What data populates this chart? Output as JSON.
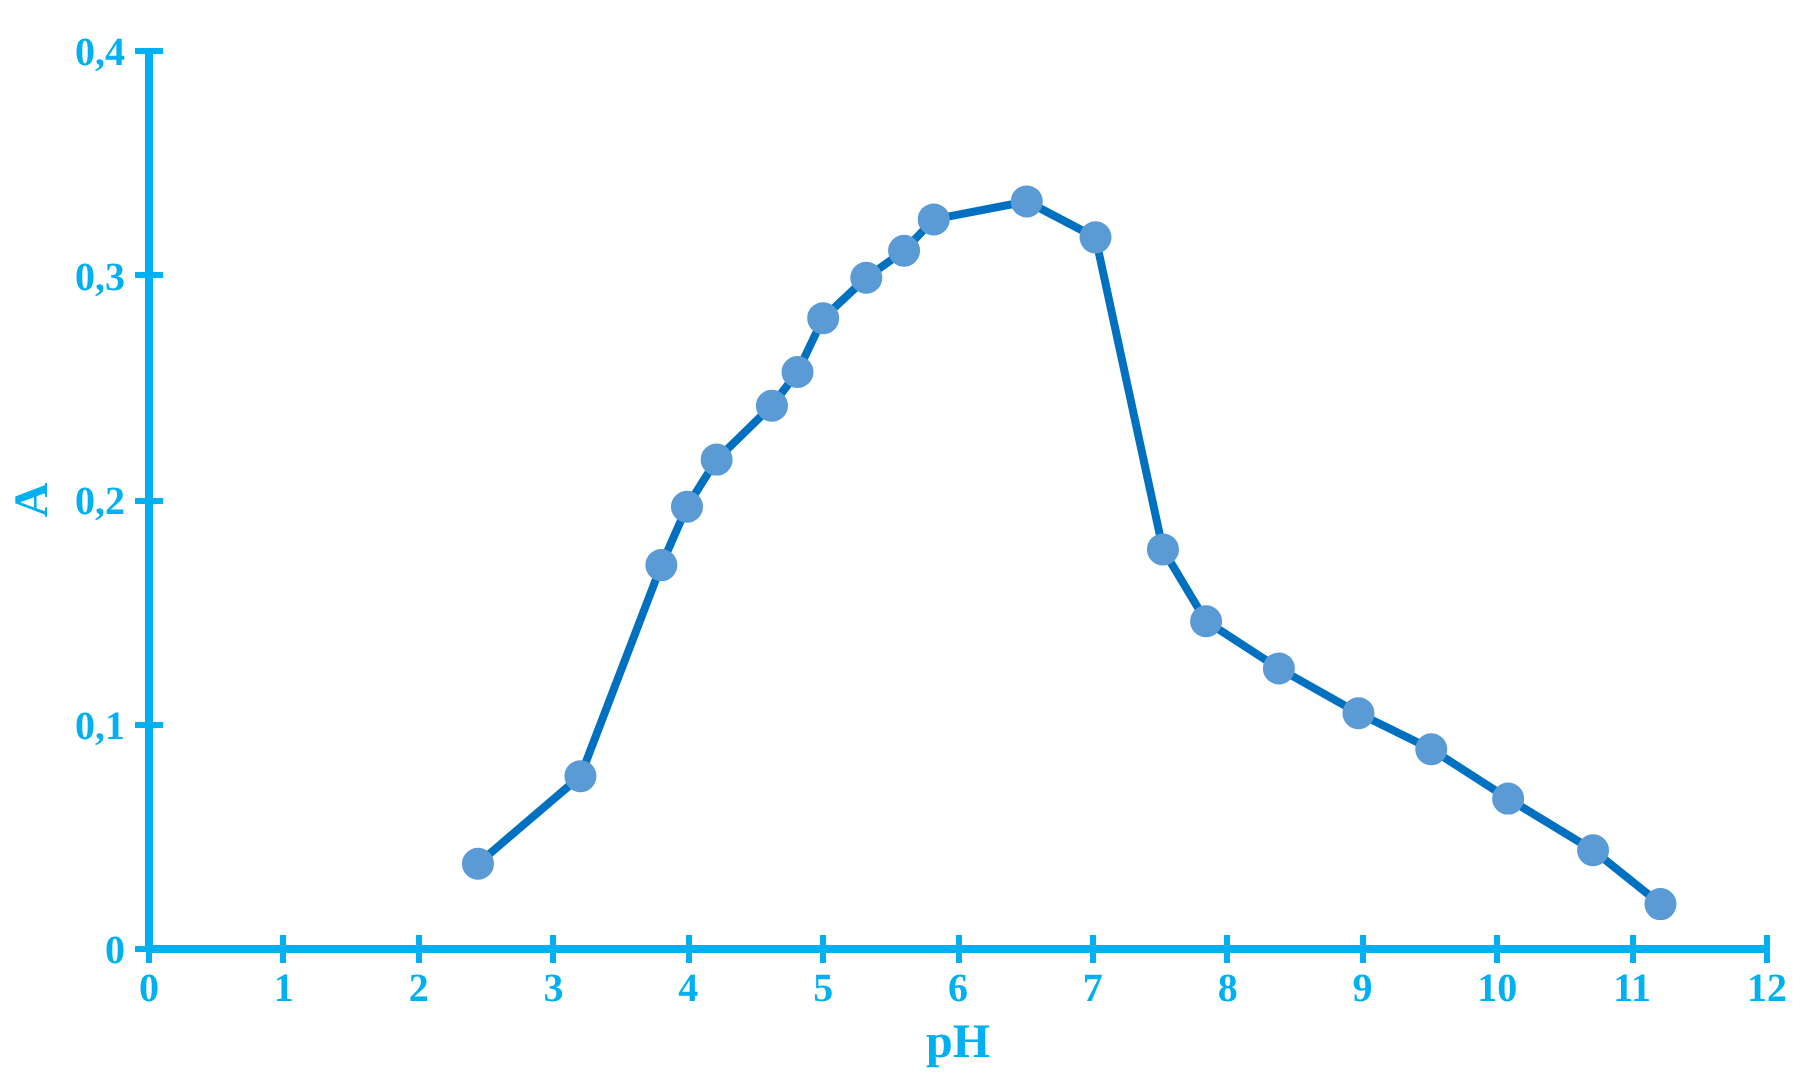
{
  "chart_data": {
    "type": "line",
    "xlabel": "pH",
    "ylabel": "A",
    "x": [
      2.44,
      3.2,
      3.8,
      3.99,
      4.21,
      4.62,
      4.81,
      5.0,
      5.32,
      5.6,
      5.82,
      6.51,
      7.02,
      7.52,
      7.84,
      8.38,
      8.97,
      9.51,
      10.08,
      10.71,
      11.21
    ],
    "series": [
      {
        "color": "#0070c0",
        "values": [
          0.038,
          0.077,
          0.171,
          0.197,
          0.218,
          0.242,
          0.257,
          0.281,
          0.299,
          0.311,
          0.325,
          0.333,
          0.317,
          0.178,
          0.146,
          0.125,
          0.105,
          0.089,
          0.067,
          0.044,
          0.02
        ]
      }
    ],
    "marker": "circle",
    "line_style": "solid",
    "grid": false,
    "xlim": [
      0,
      12
    ],
    "xticks": [
      0,
      1,
      2,
      3,
      4,
      5,
      6,
      7,
      8,
      9,
      10,
      11,
      12
    ],
    "ylim": [
      0,
      0.4
    ],
    "yticks": [
      0,
      {
        "value": 0.1,
        "label": "0,1"
      },
      {
        "value": 0.2,
        "label": "0,2"
      },
      {
        "value": 0.3,
        "label": "0,3"
      },
      {
        "value": 0.4,
        "label": "0,4"
      }
    ]
  }
}
